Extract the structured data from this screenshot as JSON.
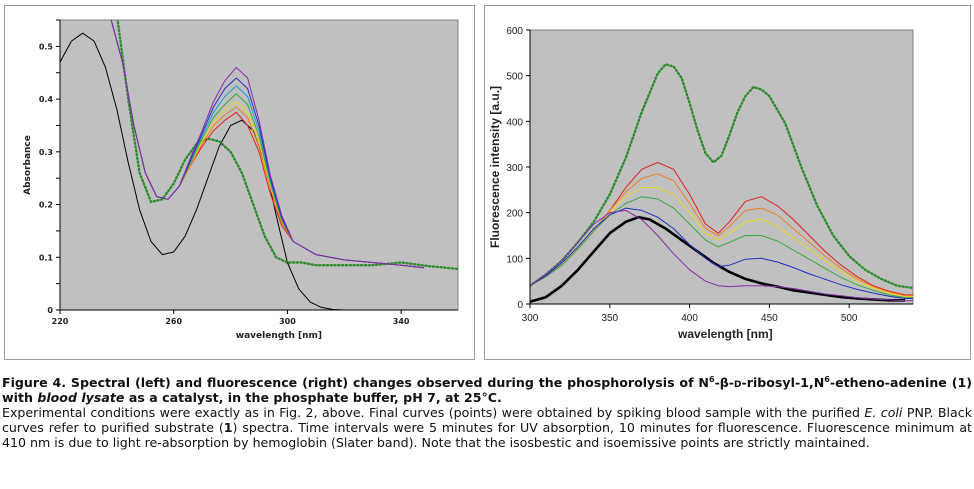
{
  "chart_data": [
    {
      "type": "line",
      "title": "",
      "xlabel": "wavelength [nm]",
      "ylabel": "Absorbance",
      "xlim": [
        220,
        360
      ],
      "ylim": [
        0,
        0.55
      ],
      "xticks": [
        220,
        260,
        300,
        340
      ],
      "yticks": [
        0,
        0.05,
        0.1,
        0.15,
        0.2,
        0.25,
        0.3,
        0.35,
        0.4,
        0.45,
        0.5,
        0.55
      ],
      "ytick_labels": [
        "0",
        "",
        "0.1",
        "",
        "0.2",
        "",
        "0.3",
        "",
        "0.4",
        "",
        "0.5",
        ""
      ],
      "grid": false,
      "background": "#c0c0c0",
      "series": [
        {
          "color": "#000000",
          "style": "solid",
          "x": [
            220,
            224,
            228,
            232,
            236,
            240,
            244,
            248,
            252,
            256,
            260,
            264,
            268,
            272,
            276,
            280,
            284,
            288,
            292,
            296,
            300,
            304,
            308,
            312,
            316,
            320
          ],
          "y": [
            0.47,
            0.51,
            0.525,
            0.51,
            0.46,
            0.38,
            0.28,
            0.19,
            0.13,
            0.105,
            0.11,
            0.14,
            0.19,
            0.25,
            0.31,
            0.35,
            0.36,
            0.34,
            0.28,
            0.18,
            0.09,
            0.04,
            0.015,
            0.005,
            0.001,
            0
          ]
        },
        {
          "color": "#2e8b2e",
          "style": "dots",
          "x": [
            240,
            244,
            248,
            252,
            256,
            260,
            264,
            268,
            272,
            276,
            280,
            284,
            288,
            292,
            296,
            300,
            305,
            310,
            320,
            330,
            340,
            350,
            360
          ],
          "y": [
            0.56,
            0.4,
            0.26,
            0.205,
            0.21,
            0.24,
            0.285,
            0.315,
            0.325,
            0.32,
            0.3,
            0.26,
            0.2,
            0.14,
            0.1,
            0.09,
            0.09,
            0.085,
            0.085,
            0.085,
            0.09,
            0.083,
            0.078
          ]
        },
        {
          "color": "#e02020",
          "style": "solid",
          "x": [
            238,
            242,
            246,
            250,
            254,
            258,
            262,
            266,
            270,
            274,
            278,
            282,
            286,
            290,
            294,
            298,
            302,
            310,
            320,
            330,
            340,
            348
          ],
          "y": [
            0.55,
            0.47,
            0.35,
            0.26,
            0.215,
            0.21,
            0.235,
            0.275,
            0.31,
            0.34,
            0.36,
            0.375,
            0.35,
            0.3,
            0.22,
            0.16,
            0.13,
            0.105,
            0.095,
            0.09,
            0.085,
            0.08
          ]
        },
        {
          "color": "#f07f20",
          "style": "solid",
          "x": [
            238,
            242,
            246,
            250,
            254,
            258,
            262,
            266,
            270,
            274,
            278,
            282,
            286,
            290,
            294,
            298,
            302,
            310,
            320,
            330,
            340,
            348
          ],
          "y": [
            0.55,
            0.47,
            0.35,
            0.26,
            0.215,
            0.21,
            0.235,
            0.275,
            0.315,
            0.35,
            0.37,
            0.385,
            0.365,
            0.31,
            0.23,
            0.165,
            0.13,
            0.105,
            0.095,
            0.09,
            0.085,
            0.08
          ]
        },
        {
          "color": "#e8d820",
          "style": "solid",
          "x": [
            238,
            242,
            246,
            250,
            254,
            258,
            262,
            266,
            270,
            274,
            278,
            282,
            286,
            290,
            294,
            298,
            302,
            310,
            320,
            330,
            340,
            348
          ],
          "y": [
            0.55,
            0.47,
            0.35,
            0.26,
            0.215,
            0.21,
            0.235,
            0.28,
            0.32,
            0.355,
            0.38,
            0.395,
            0.375,
            0.32,
            0.235,
            0.17,
            0.13,
            0.105,
            0.095,
            0.09,
            0.085,
            0.08
          ]
        },
        {
          "color": "#3aa83a",
          "style": "solid",
          "x": [
            238,
            242,
            246,
            250,
            254,
            258,
            262,
            266,
            270,
            274,
            278,
            282,
            286,
            290,
            294,
            298,
            302,
            310,
            320,
            330,
            340,
            348
          ],
          "y": [
            0.55,
            0.47,
            0.35,
            0.26,
            0.215,
            0.21,
            0.235,
            0.28,
            0.325,
            0.365,
            0.39,
            0.41,
            0.39,
            0.33,
            0.24,
            0.17,
            0.13,
            0.105,
            0.095,
            0.09,
            0.085,
            0.08
          ]
        },
        {
          "color": "#1a9ad6",
          "style": "solid",
          "x": [
            238,
            242,
            246,
            250,
            254,
            258,
            262,
            266,
            270,
            274,
            278,
            282,
            286,
            290,
            294,
            298,
            302,
            310,
            320,
            330,
            340,
            348
          ],
          "y": [
            0.55,
            0.47,
            0.35,
            0.26,
            0.215,
            0.21,
            0.235,
            0.285,
            0.33,
            0.375,
            0.405,
            0.425,
            0.405,
            0.34,
            0.245,
            0.175,
            0.13,
            0.105,
            0.095,
            0.09,
            0.085,
            0.08
          ]
        },
        {
          "color": "#2030c0",
          "style": "solid",
          "x": [
            238,
            242,
            246,
            250,
            254,
            258,
            262,
            266,
            270,
            274,
            278,
            282,
            286,
            290,
            294,
            298,
            302,
            310,
            320,
            330,
            340,
            348
          ],
          "y": [
            0.55,
            0.47,
            0.35,
            0.26,
            0.215,
            0.21,
            0.235,
            0.285,
            0.335,
            0.385,
            0.42,
            0.44,
            0.42,
            0.35,
            0.25,
            0.175,
            0.13,
            0.105,
            0.095,
            0.09,
            0.085,
            0.08
          ]
        },
        {
          "color": "#8a2aa8",
          "style": "solid",
          "x": [
            238,
            242,
            246,
            250,
            254,
            258,
            262,
            266,
            270,
            274,
            278,
            282,
            286,
            290,
            294,
            298,
            302,
            310,
            320,
            330,
            340,
            348
          ],
          "y": [
            0.55,
            0.47,
            0.35,
            0.26,
            0.215,
            0.21,
            0.235,
            0.29,
            0.34,
            0.395,
            0.435,
            0.46,
            0.44,
            0.36,
            0.255,
            0.18,
            0.13,
            0.105,
            0.095,
            0.09,
            0.085,
            0.08
          ]
        }
      ]
    },
    {
      "type": "line",
      "title": "",
      "xlabel": "wavelength [nm]",
      "ylabel": "Fluorescence intensity [a.u.]",
      "xlim": [
        300,
        540
      ],
      "ylim": [
        0,
        600
      ],
      "xticks": [
        300,
        350,
        400,
        450,
        500
      ],
      "yticks": [
        0,
        100,
        200,
        300,
        400,
        500,
        600
      ],
      "grid": false,
      "background": "#c0c0c0",
      "series": [
        {
          "color": "#000000",
          "style": "thick",
          "x": [
            300,
            310,
            320,
            330,
            340,
            350,
            360,
            368,
            375,
            385,
            395,
            405,
            415,
            425,
            435,
            445,
            455,
            465,
            475,
            485,
            495,
            505,
            515,
            525,
            535
          ],
          "y": [
            5,
            15,
            40,
            75,
            115,
            155,
            180,
            190,
            185,
            165,
            140,
            115,
            90,
            70,
            55,
            45,
            38,
            30,
            25,
            20,
            15,
            12,
            10,
            8,
            8
          ]
        },
        {
          "color": "#2e8b2e",
          "style": "dots",
          "x": [
            300,
            310,
            320,
            330,
            340,
            350,
            360,
            370,
            380,
            385,
            390,
            395,
            400,
            405,
            410,
            415,
            420,
            425,
            430,
            435,
            440,
            445,
            450,
            460,
            470,
            480,
            490,
            500,
            510,
            520,
            530,
            540
          ],
          "y": [
            40,
            65,
            95,
            135,
            180,
            240,
            320,
            420,
            505,
            525,
            520,
            495,
            440,
            380,
            330,
            310,
            325,
            370,
            420,
            455,
            475,
            470,
            455,
            395,
            300,
            215,
            150,
            105,
            75,
            55,
            40,
            35
          ]
        },
        {
          "color": "#e02020",
          "style": "solid",
          "x": [
            300,
            310,
            320,
            330,
            340,
            350,
            360,
            370,
            380,
            390,
            400,
            410,
            418,
            425,
            435,
            445,
            455,
            465,
            475,
            485,
            495,
            505,
            515,
            525,
            535,
            540
          ],
          "y": [
            40,
            60,
            85,
            120,
            160,
            205,
            255,
            295,
            310,
            295,
            240,
            175,
            155,
            180,
            225,
            235,
            215,
            185,
            150,
            115,
            85,
            60,
            40,
            28,
            20,
            20
          ]
        },
        {
          "color": "#f07f20",
          "style": "solid",
          "x": [
            300,
            310,
            320,
            330,
            340,
            350,
            360,
            370,
            380,
            390,
            400,
            410,
            418,
            425,
            435,
            445,
            455,
            465,
            475,
            485,
            495,
            505,
            515,
            525,
            535,
            540
          ],
          "y": [
            40,
            60,
            85,
            120,
            160,
            205,
            245,
            275,
            285,
            270,
            220,
            165,
            150,
            170,
            205,
            210,
            195,
            165,
            135,
            105,
            78,
            55,
            38,
            26,
            18,
            18
          ]
        },
        {
          "color": "#e8d820",
          "style": "solid",
          "x": [
            300,
            310,
            320,
            330,
            340,
            350,
            360,
            370,
            380,
            390,
            400,
            410,
            418,
            425,
            435,
            445,
            455,
            465,
            475,
            485,
            495,
            505,
            515,
            525,
            535,
            540
          ],
          "y": [
            40,
            60,
            85,
            120,
            160,
            200,
            235,
            255,
            255,
            240,
            200,
            155,
            140,
            155,
            180,
            185,
            170,
            145,
            120,
            95,
            70,
            50,
            35,
            24,
            16,
            16
          ]
        },
        {
          "color": "#3aa83a",
          "style": "solid",
          "x": [
            300,
            310,
            320,
            330,
            340,
            350,
            360,
            370,
            380,
            390,
            400,
            410,
            418,
            425,
            435,
            445,
            455,
            465,
            475,
            485,
            495,
            505,
            515,
            525,
            535,
            540
          ],
          "y": [
            40,
            60,
            85,
            120,
            160,
            195,
            220,
            235,
            230,
            210,
            175,
            140,
            125,
            135,
            150,
            150,
            138,
            118,
            98,
            78,
            58,
            42,
            30,
            20,
            14,
            14
          ]
        },
        {
          "color": "#2030c0",
          "style": "solid",
          "x": [
            300,
            310,
            320,
            330,
            340,
            350,
            360,
            370,
            380,
            390,
            400,
            410,
            418,
            425,
            435,
            445,
            455,
            465,
            475,
            485,
            495,
            505,
            515,
            525,
            535,
            540
          ],
          "y": [
            40,
            62,
            90,
            125,
            165,
            195,
            210,
            205,
            190,
            165,
            130,
            100,
            82,
            85,
            98,
            100,
            92,
            80,
            66,
            54,
            42,
            32,
            24,
            17,
            12,
            12
          ]
        },
        {
          "color": "#8a2aa8",
          "style": "solid",
          "x": [
            300,
            310,
            320,
            330,
            340,
            350,
            360,
            370,
            380,
            390,
            400,
            410,
            418,
            425,
            435,
            445,
            455,
            465,
            475,
            485,
            495,
            505,
            515,
            525,
            535,
            540
          ],
          "y": [
            40,
            65,
            95,
            135,
            175,
            200,
            205,
            185,
            150,
            110,
            75,
            50,
            40,
            38,
            40,
            40,
            38,
            34,
            28,
            22,
            18,
            14,
            11,
            9,
            7,
            7
          ]
        }
      ]
    }
  ],
  "caption": {
    "heading_1": "Figure 4. Spectral (left) and fluorescence (right) changes observed during the phosphorolysis of N",
    "sup_1": "6",
    "heading_2": "-β-",
    "heading_d": "d",
    "heading_3": "-ribosyl-1,N",
    "sup_2": "6",
    "heading_4": "-etheno-adenine (1) with ",
    "heading_italic": "blood lysate",
    "heading_5": " as a catalyst, in the phosphate buffer, pH 7, at 25°C.",
    "body_1": "Experimental conditions were exactly as in Fig. 2, above. Final curves (points) were obtained by spiking blood sample with the purified ",
    "body_italic": "E. coli",
    "body_2": " PNP. Black curves refer to purified substrate (",
    "body_bold": "1",
    "body_3": ") spectra. Time intervals were 5 minutes for UV absorption, 10 minutes for fluorescence. Fluorescence minimum at 410 nm is due to light re-absorption by hemoglobin (Slater band). Note that the isosbestic and isoemissive points are strictly maintained."
  }
}
